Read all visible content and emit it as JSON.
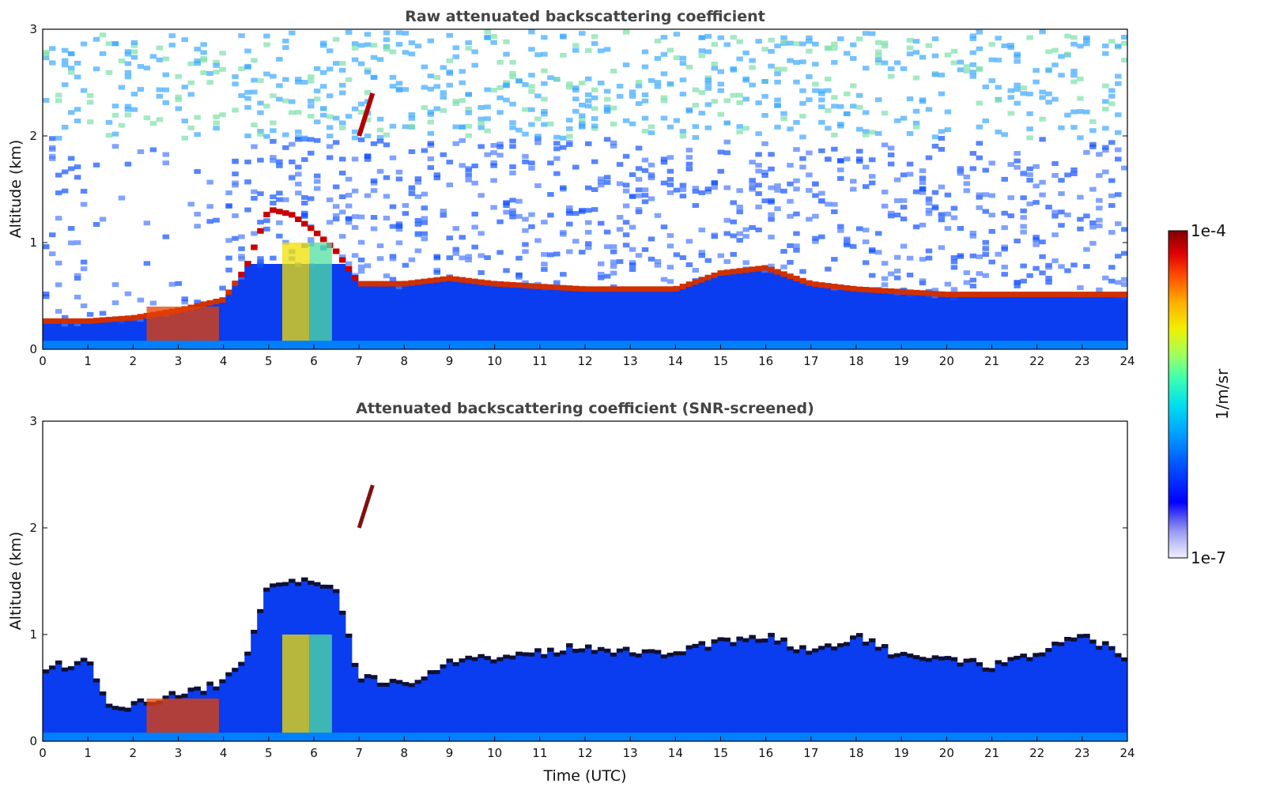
{
  "chart_data": [
    {
      "type": "heatmap",
      "title": "Raw attenuated backscattering coefficient",
      "xlabel": "",
      "ylabel": "Altitude (km)",
      "xlim": [
        0,
        24
      ],
      "ylim": [
        0,
        3
      ],
      "xticks": [
        "0",
        "1",
        "2",
        "3",
        "4",
        "5",
        "6",
        "7",
        "8",
        "9",
        "10",
        "11",
        "12",
        "13",
        "14",
        "15",
        "16",
        "17",
        "18",
        "19",
        "20",
        "21",
        "22",
        "23",
        "24"
      ],
      "yticks": [
        "0",
        "1",
        "2",
        "3"
      ],
      "layers": {
        "boundary_layer_top_km": [
          [
            0,
            0.25
          ],
          [
            1,
            0.25
          ],
          [
            2,
            0.28
          ],
          [
            3,
            0.35
          ],
          [
            4,
            0.45
          ],
          [
            4.5,
            0.75
          ],
          [
            5,
            1.3
          ],
          [
            5.5,
            1.25
          ],
          [
            6,
            1.1
          ],
          [
            6.5,
            0.9
          ],
          [
            7,
            0.6
          ],
          [
            8,
            0.6
          ],
          [
            9,
            0.65
          ],
          [
            10,
            0.6
          ],
          [
            12,
            0.55
          ],
          [
            14,
            0.55
          ],
          [
            15,
            0.7
          ],
          [
            16,
            0.75
          ],
          [
            17,
            0.6
          ],
          [
            18,
            0.55
          ],
          [
            20,
            0.5
          ],
          [
            21,
            0.5
          ],
          [
            22,
            0.5
          ],
          [
            23,
            0.5
          ],
          [
            24,
            0.5
          ]
        ],
        "elevated_cloud_km": [
          [
            7.0,
            2.0
          ],
          [
            7.3,
            2.4
          ]
        ]
      }
    },
    {
      "type": "heatmap",
      "title": "Attenuated backscattering coefficient (SNR-screened)",
      "xlabel": "Time (UTC)",
      "ylabel": "Altitude (km)",
      "xlim": [
        0,
        24
      ],
      "ylim": [
        0,
        3
      ],
      "xticks": [
        "0",
        "1",
        "2",
        "3",
        "4",
        "5",
        "6",
        "7",
        "8",
        "9",
        "10",
        "11",
        "12",
        "13",
        "14",
        "15",
        "16",
        "17",
        "18",
        "19",
        "20",
        "21",
        "22",
        "23",
        "24"
      ],
      "yticks": [
        "0",
        "1",
        "2",
        "3"
      ],
      "layers": {
        "signal_top_km": [
          [
            0,
            0.7
          ],
          [
            1,
            0.75
          ],
          [
            1.5,
            0.35
          ],
          [
            2,
            0.35
          ],
          [
            3,
            0.45
          ],
          [
            4,
            0.55
          ],
          [
            4.5,
            0.8
          ],
          [
            5,
            1.5
          ],
          [
            6,
            1.5
          ],
          [
            6.5,
            1.4
          ],
          [
            7,
            0.6
          ],
          [
            8,
            0.55
          ],
          [
            9,
            0.75
          ],
          [
            10,
            0.8
          ],
          [
            11,
            0.85
          ],
          [
            12,
            0.9
          ],
          [
            13,
            0.85
          ],
          [
            14,
            0.85
          ],
          [
            15,
            0.95
          ],
          [
            16,
            1.0
          ],
          [
            17,
            0.85
          ],
          [
            18,
            1.0
          ],
          [
            19,
            0.8
          ],
          [
            20,
            0.8
          ],
          [
            21,
            0.7
          ],
          [
            22,
            0.85
          ],
          [
            23,
            1.0
          ],
          [
            24,
            0.8
          ]
        ]
      }
    }
  ],
  "colorbar": {
    "max_label": "1e-4",
    "min_label": "1e-7",
    "unit_label": "1/m/sr",
    "colors": [
      "#eeeeff",
      "#c8c8f8",
      "#9a9af4",
      "#5a5af0",
      "#0000ff",
      "#0050ff",
      "#00a0ff",
      "#00e0ee",
      "#40ffb0",
      "#a0ff60",
      "#f0f000",
      "#ffb000",
      "#ff5000",
      "#e00000",
      "#800000"
    ]
  }
}
